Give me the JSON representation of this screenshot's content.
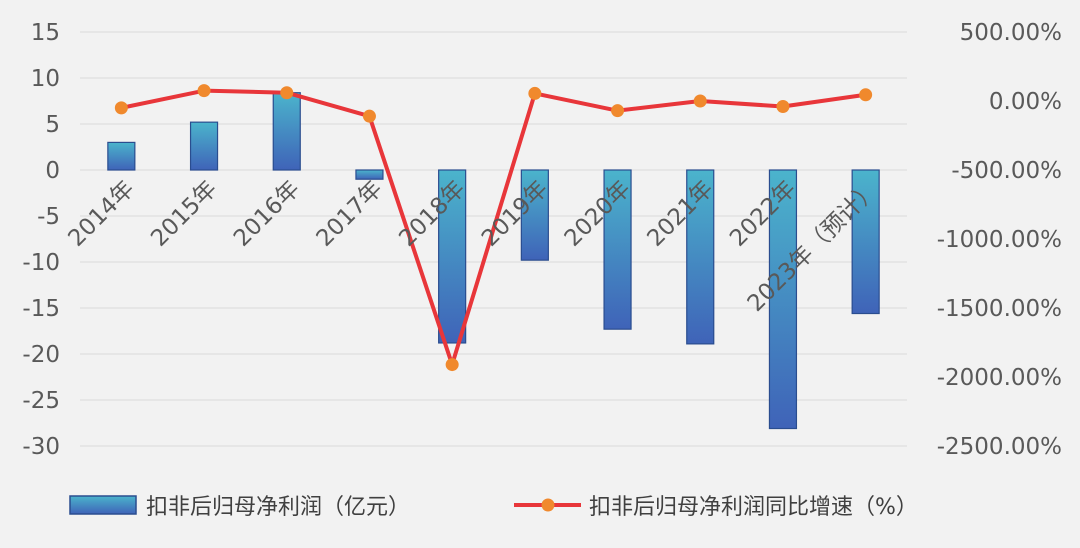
{
  "chart_data": {
    "type": "bar",
    "categories": [
      "2014年",
      "2015年",
      "2016年",
      "2017年",
      "2018年",
      "2019年",
      "2020年",
      "2021年",
      "2022年",
      "2023年（预计）"
    ],
    "series": [
      {
        "name": "扣非后归母净利润（亿元）",
        "type": "bar",
        "axis": "left",
        "values": [
          3.0,
          5.2,
          8.4,
          -1.0,
          -18.8,
          -9.8,
          -17.3,
          -18.9,
          -28.1,
          -15.6
        ]
      },
      {
        "name": "扣非后归母净利润同比增速（%）",
        "type": "line",
        "axis": "right",
        "values": [
          -50,
          75,
          60,
          -110,
          -1910,
          55,
          -70,
          0,
          -40,
          45
        ]
      }
    ],
    "y_left": {
      "lim": [
        -30,
        15
      ],
      "ticks": [
        15,
        10,
        5,
        0,
        -5,
        -10,
        -15,
        -20,
        -25,
        -30
      ],
      "tick_labels": [
        "15",
        "10",
        "5",
        "0",
        "-5",
        "-10",
        "-15",
        "-20",
        "-25",
        "-30"
      ]
    },
    "y_right": {
      "lim": [
        -2500,
        500
      ],
      "ticks": [
        500,
        0,
        -500,
        -1000,
        -1500,
        -2000,
        -2500
      ],
      "tick_labels": [
        "500.00%",
        "0.00%",
        "-500.00%",
        "-1000.00%",
        "-1500.00%",
        "-2000.00%",
        "-2500.00%"
      ]
    },
    "grid": true,
    "legend_position": "bottom",
    "colors": {
      "bar_top": "#4bb4cc",
      "bar_bottom": "#3f63b8",
      "bar_edge": "#2a4d8f",
      "line": "#e8363a",
      "marker": "#f0892d",
      "grid": "#d9d9d9",
      "text": "#595959"
    }
  }
}
